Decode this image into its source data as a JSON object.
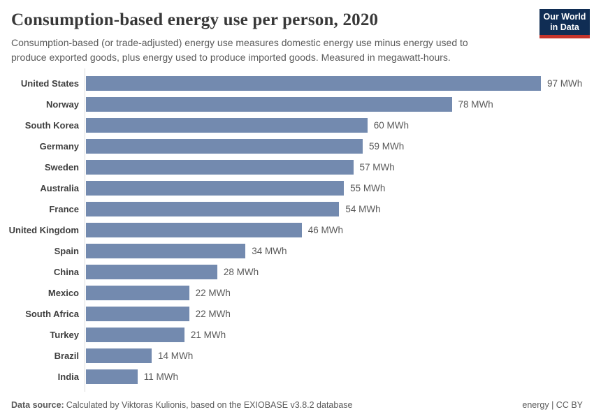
{
  "header": {
    "title": "Consumption-based energy use per person, 2020",
    "subtitle": "Consumption-based (or trade-adjusted) energy use measures domestic energy use minus energy used to produce exported goods, plus energy used to produce imported goods. Measured in megawatt-hours.",
    "logo": {
      "line1": "Our World",
      "line2": "in Data"
    }
  },
  "chart_data": {
    "type": "bar",
    "orientation": "horizontal",
    "title": "Consumption-based energy use per person, 2020",
    "unit": "MWh",
    "value_suffix": " MWh",
    "categories": [
      "United States",
      "Norway",
      "South Korea",
      "Germany",
      "Sweden",
      "Australia",
      "France",
      "United Kingdom",
      "Spain",
      "China",
      "Mexico",
      "South Africa",
      "Turkey",
      "Brazil",
      "India"
    ],
    "values": [
      97,
      78,
      60,
      59,
      57,
      55,
      54,
      46,
      34,
      28,
      22,
      22,
      21,
      14,
      11
    ],
    "value_labels": [
      "97 MWh",
      "78 MWh",
      "60 MWh",
      "59 MWh",
      "57 MWh",
      "55 MWh",
      "54 MWh",
      "46 MWh",
      "34 MWh",
      "28 MWh",
      "22 MWh",
      "22 MWh",
      "21 MWh",
      "14 MWh",
      "11 MWh"
    ],
    "xlim": [
      0,
      97
    ],
    "grid": false,
    "legend": false,
    "bar_color": "#738aaf"
  },
  "footer": {
    "data_source_label": "Data source:",
    "data_source_text": "Calculated by Viktoras Kulionis, based on the EXIOBASE v3.8.2 database",
    "license": "energy | CC BY"
  },
  "colors": {
    "bar": "#738aaf",
    "axis_line": "#dcdcdc",
    "title_text": "#383838",
    "subtitle_text": "#5b5b5b",
    "category_label": "#3f3f3f",
    "value_label": "#5a5a5a",
    "footer_text": "#5b5b5b",
    "logo_bg": "#102d54",
    "logo_stripe": "#c5342b",
    "logo_text": "#ffffff"
  }
}
